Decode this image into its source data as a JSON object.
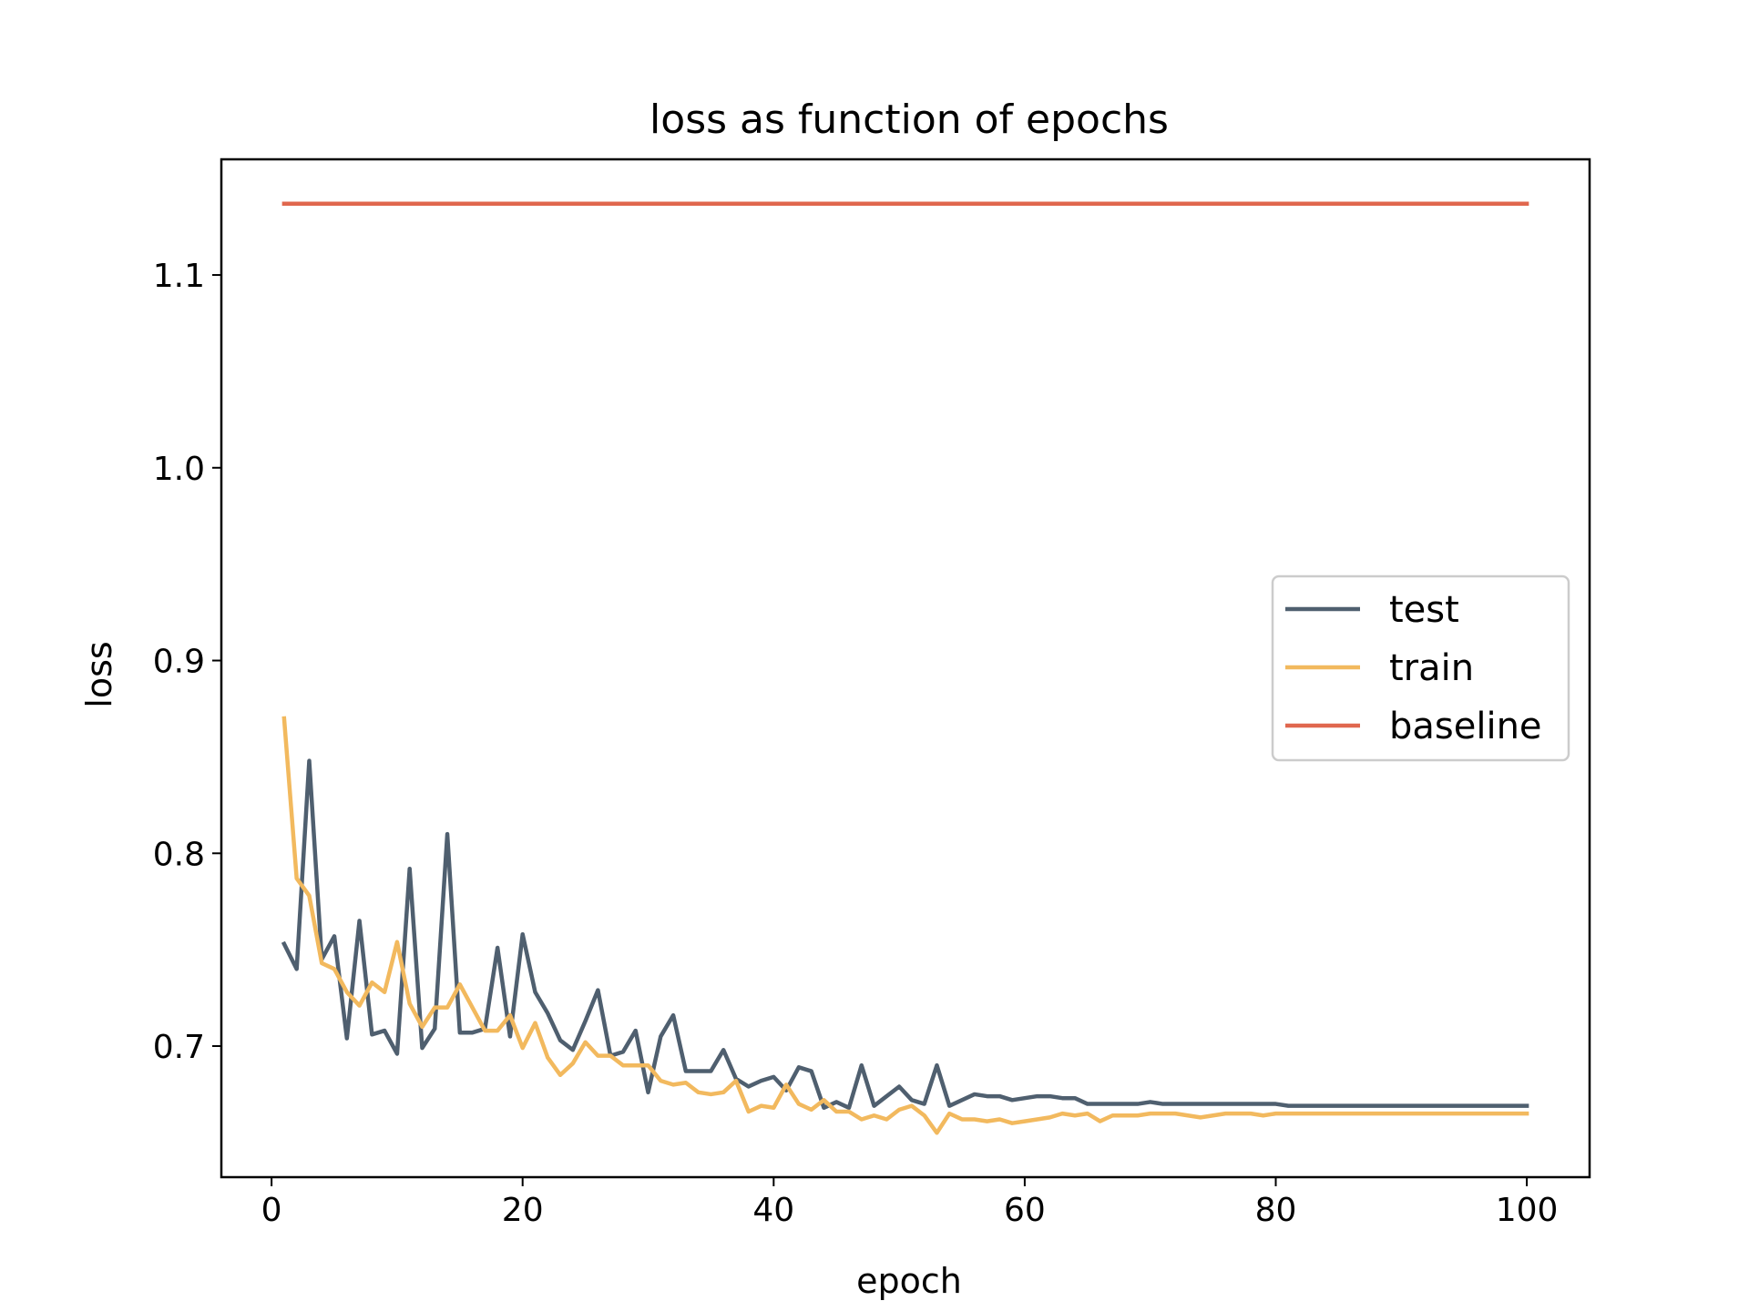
{
  "chart_data": {
    "type": "line",
    "title": "loss as function of epochs",
    "xlabel": "epoch",
    "ylabel": "loss",
    "xlim": [
      -4,
      105
    ],
    "ylim": [
      0.632,
      1.16
    ],
    "xticks": [
      0,
      20,
      40,
      60,
      80,
      100
    ],
    "yticks": [
      0.7,
      0.8,
      0.9,
      1.0,
      1.1
    ],
    "xtick_labels": [
      "0",
      "20",
      "40",
      "60",
      "80",
      "100"
    ],
    "ytick_labels": [
      "0.7",
      "0.8",
      "0.9",
      "1.0",
      "1.1"
    ],
    "grid": false,
    "legend_position": "center-right",
    "series": [
      {
        "name": "test",
        "color": "#4f5f6f",
        "x": [
          1,
          2,
          3,
          4,
          5,
          6,
          7,
          8,
          9,
          10,
          11,
          12,
          13,
          14,
          15,
          16,
          17,
          18,
          19,
          20,
          21,
          22,
          23,
          24,
          25,
          26,
          27,
          28,
          29,
          30,
          31,
          32,
          33,
          34,
          35,
          36,
          37,
          38,
          39,
          40,
          41,
          42,
          43,
          44,
          45,
          46,
          47,
          48,
          49,
          50,
          51,
          52,
          53,
          54,
          55,
          56,
          57,
          58,
          59,
          60,
          61,
          62,
          63,
          64,
          65,
          66,
          67,
          68,
          69,
          70,
          71,
          72,
          73,
          74,
          75,
          76,
          77,
          78,
          79,
          80,
          81,
          82,
          83,
          84,
          85,
          86,
          87,
          88,
          89,
          90,
          91,
          92,
          93,
          94,
          95,
          96,
          97,
          98,
          99,
          100
        ],
        "values": [
          0.753,
          0.74,
          0.848,
          0.745,
          0.757,
          0.704,
          0.765,
          0.706,
          0.708,
          0.696,
          0.792,
          0.699,
          0.709,
          0.81,
          0.707,
          0.707,
          0.709,
          0.751,
          0.705,
          0.758,
          0.728,
          0.717,
          0.703,
          0.698,
          0.713,
          0.729,
          0.695,
          0.697,
          0.708,
          0.676,
          0.705,
          0.716,
          0.687,
          0.687,
          0.687,
          0.698,
          0.683,
          0.679,
          0.682,
          0.684,
          0.677,
          0.689,
          0.687,
          0.668,
          0.671,
          0.668,
          0.69,
          0.669,
          0.674,
          0.679,
          0.672,
          0.67,
          0.69,
          0.669,
          0.672,
          0.675,
          0.674,
          0.674,
          0.672,
          0.673,
          0.674,
          0.674,
          0.673,
          0.673,
          0.67,
          0.67,
          0.67,
          0.67,
          0.67,
          0.671,
          0.67,
          0.67,
          0.67,
          0.67,
          0.67,
          0.67,
          0.67,
          0.67,
          0.67,
          0.67,
          0.669,
          0.669,
          0.669,
          0.669,
          0.669,
          0.669,
          0.669,
          0.669,
          0.669,
          0.669,
          0.669,
          0.669,
          0.669,
          0.669,
          0.669,
          0.669,
          0.669,
          0.669,
          0.669,
          0.669
        ]
      },
      {
        "name": "train",
        "color": "#f2b95e",
        "x": [
          1,
          2,
          3,
          4,
          5,
          6,
          7,
          8,
          9,
          10,
          11,
          12,
          13,
          14,
          15,
          16,
          17,
          18,
          19,
          20,
          21,
          22,
          23,
          24,
          25,
          26,
          27,
          28,
          29,
          30,
          31,
          32,
          33,
          34,
          35,
          36,
          37,
          38,
          39,
          40,
          41,
          42,
          43,
          44,
          45,
          46,
          47,
          48,
          49,
          50,
          51,
          52,
          53,
          54,
          55,
          56,
          57,
          58,
          59,
          60,
          61,
          62,
          63,
          64,
          65,
          66,
          67,
          68,
          69,
          70,
          71,
          72,
          73,
          74,
          75,
          76,
          77,
          78,
          79,
          80,
          81,
          82,
          83,
          84,
          85,
          86,
          87,
          88,
          89,
          90,
          91,
          92,
          93,
          94,
          95,
          96,
          97,
          98,
          99,
          100
        ],
        "values": [
          0.87,
          0.787,
          0.778,
          0.743,
          0.74,
          0.728,
          0.721,
          0.733,
          0.728,
          0.754,
          0.722,
          0.71,
          0.72,
          0.72,
          0.732,
          0.72,
          0.708,
          0.708,
          0.716,
          0.699,
          0.712,
          0.694,
          0.685,
          0.691,
          0.702,
          0.695,
          0.695,
          0.69,
          0.69,
          0.69,
          0.682,
          0.68,
          0.681,
          0.676,
          0.675,
          0.676,
          0.682,
          0.666,
          0.669,
          0.668,
          0.68,
          0.67,
          0.667,
          0.672,
          0.666,
          0.666,
          0.662,
          0.664,
          0.662,
          0.667,
          0.669,
          0.664,
          0.655,
          0.665,
          0.662,
          0.662,
          0.661,
          0.662,
          0.66,
          0.661,
          0.662,
          0.663,
          0.665,
          0.664,
          0.665,
          0.661,
          0.664,
          0.664,
          0.664,
          0.665,
          0.665,
          0.665,
          0.664,
          0.663,
          0.664,
          0.665,
          0.665,
          0.665,
          0.664,
          0.665,
          0.665,
          0.665,
          0.665,
          0.665,
          0.665,
          0.665,
          0.665,
          0.665,
          0.665,
          0.665,
          0.665,
          0.665,
          0.665,
          0.665,
          0.665,
          0.665,
          0.665,
          0.665,
          0.665,
          0.665
        ]
      },
      {
        "name": "baseline",
        "color": "#e0674e",
        "x": [
          1,
          100
        ],
        "values": [
          1.137,
          1.137
        ]
      }
    ]
  }
}
